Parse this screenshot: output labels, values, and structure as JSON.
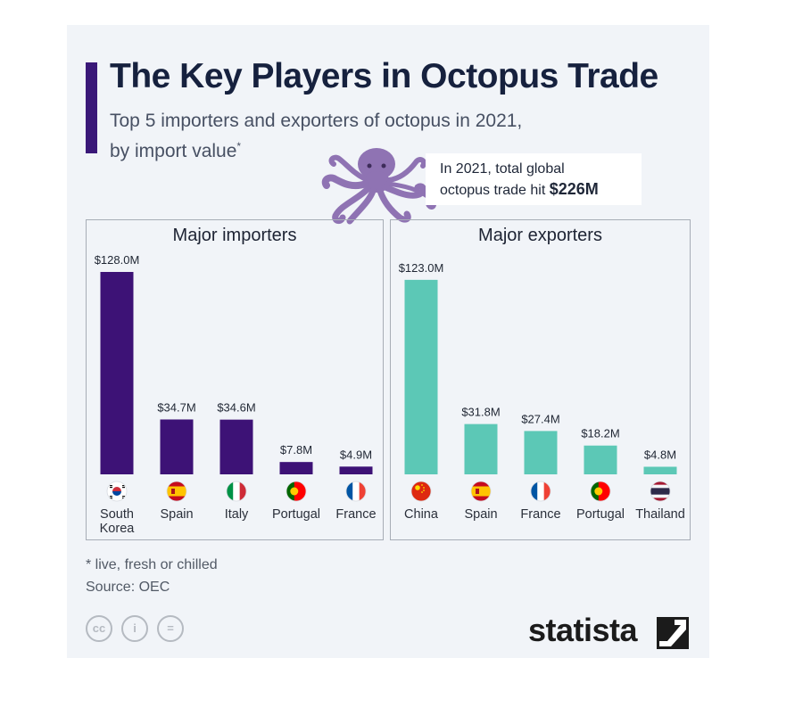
{
  "title": "The Key Players in Octopus Trade",
  "subtitle_line1": "Top 5 importers and exporters of octopus in 2021,",
  "subtitle_line2": "by import value",
  "subtitle_asterisk": "*",
  "callout": {
    "line1": "In 2021, total global",
    "line2_prefix": "octopus trade hit ",
    "value": "$226M"
  },
  "colors": {
    "title_bar": "#3a1878",
    "importers": "#3d1276",
    "exporters": "#5cc8b6",
    "octopus": "#8f73b3"
  },
  "chart_data": [
    {
      "type": "bar",
      "title": "Major importers",
      "color": "#3d1276",
      "categories": [
        "South Korea",
        "Spain",
        "Italy",
        "Portugal",
        "France"
      ],
      "category_lines": [
        [
          "South",
          "Korea"
        ],
        [
          "Spain"
        ],
        [
          "Italy"
        ],
        [
          "Portugal"
        ],
        [
          "France"
        ]
      ],
      "values": [
        128.0,
        34.7,
        34.6,
        7.8,
        4.9
      ],
      "value_labels": [
        "$128.0M",
        "$34.7M",
        "$34.6M",
        "$7.8M",
        "$4.9M"
      ],
      "flags": [
        "south-korea-flag",
        "spain-flag",
        "italy-flag",
        "portugal-flag",
        "france-flag"
      ],
      "ylim": [
        0,
        128
      ],
      "grid": false
    },
    {
      "type": "bar",
      "title": "Major exporters",
      "color": "#5cc8b6",
      "categories": [
        "China",
        "Spain",
        "France",
        "Portugal",
        "Thailand"
      ],
      "category_lines": [
        [
          "China"
        ],
        [
          "Spain"
        ],
        [
          "France"
        ],
        [
          "Portugal"
        ],
        [
          "Thailand"
        ]
      ],
      "values": [
        123.0,
        31.8,
        27.4,
        18.2,
        4.8
      ],
      "value_labels": [
        "$123.0M",
        "$31.8M",
        "$27.4M",
        "$18.2M",
        "$4.8M"
      ],
      "flags": [
        "china-flag",
        "spain-flag",
        "france-flag",
        "portugal-flag",
        "thailand-flag"
      ],
      "ylim": [
        0,
        128
      ],
      "grid": false
    }
  ],
  "footnote": "* live, fresh or chilled",
  "source": "Source: OEC",
  "license_icons": [
    "cc-icon",
    "by-icon",
    "nd-icon"
  ],
  "license_glyphs": {
    "cc": "cc",
    "by": "i",
    "nd": "="
  },
  "brand": "statista"
}
